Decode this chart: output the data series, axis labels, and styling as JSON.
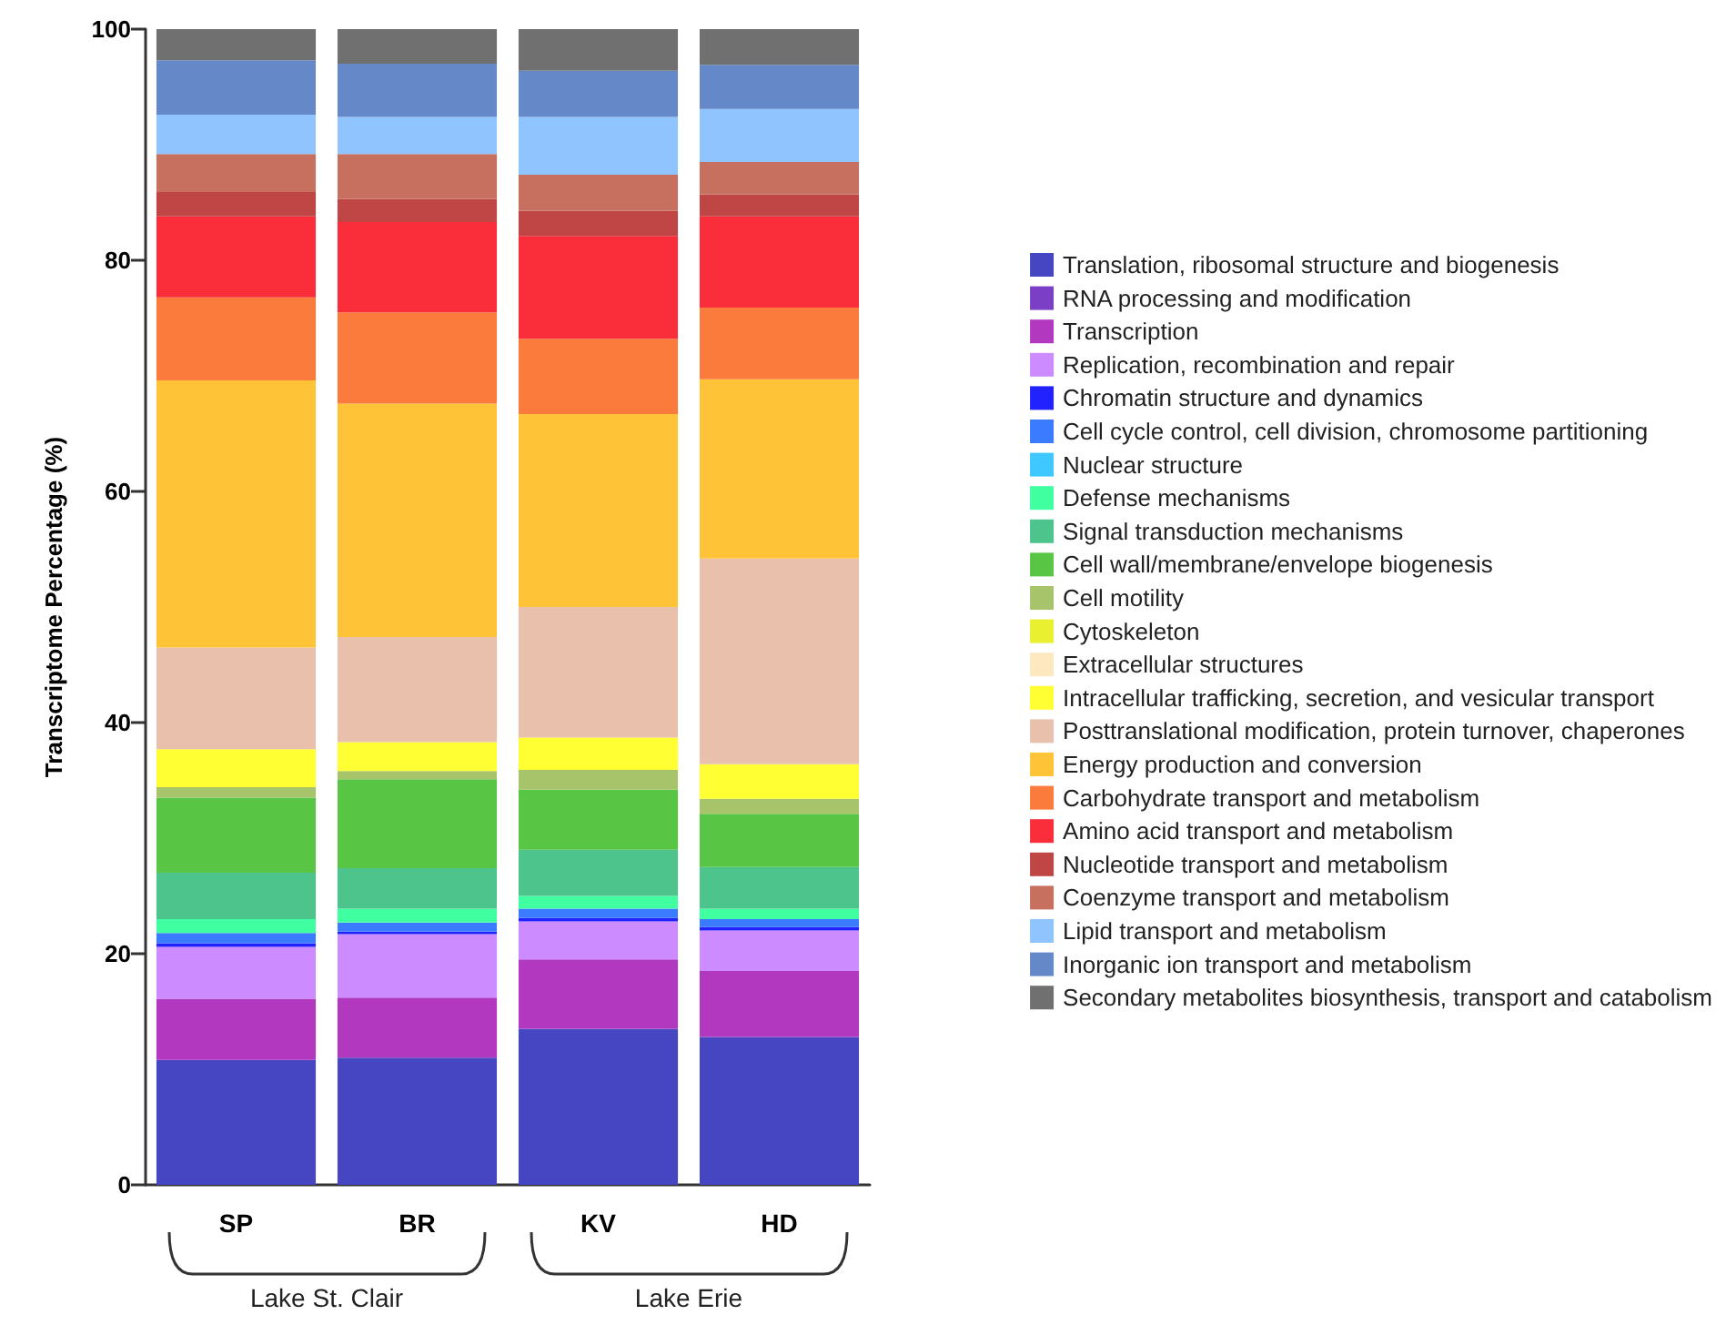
{
  "chart_data": {
    "type": "bar",
    "stacked": true,
    "ylabel": "Transcriptome Percentage (%)",
    "categories": [
      "SP",
      "BR",
      "KV",
      "HD"
    ],
    "ylim": [
      0,
      100
    ],
    "yticks": [
      0,
      20,
      40,
      60,
      80,
      100
    ],
    "grid": false,
    "legend": "right",
    "annotations": [
      "Lake St. Clair",
      "Lake Erie"
    ],
    "series": [
      {
        "name": "Translation, ribosomal structure and biogenesis",
        "color": "#4646c3",
        "values": [
          10.8,
          11.0,
          13.5,
          12.8
        ]
      },
      {
        "name": "RNA processing and modification",
        "color": "#7a3fc4",
        "values": [
          0,
          0,
          0,
          0
        ]
      },
      {
        "name": "Transcription",
        "color": "#b238c0",
        "values": [
          5.3,
          5.2,
          6.0,
          5.7
        ]
      },
      {
        "name": "Replication, recombination and repair",
        "color": "#cc8cff",
        "values": [
          4.5,
          5.5,
          3.3,
          3.5
        ]
      },
      {
        "name": "Chromatin structure and dynamics",
        "color": "#2222ff",
        "values": [
          0.3,
          0.2,
          0.3,
          0.3
        ]
      },
      {
        "name": "Cell cycle control, cell division, chromosome partitioning",
        "color": "#3b7bff",
        "values": [
          0.9,
          0.8,
          0.8,
          0.7
        ]
      },
      {
        "name": "Nuclear structure",
        "color": "#3fc8ff",
        "values": [
          0,
          0,
          0,
          0
        ]
      },
      {
        "name": "Defense mechanisms",
        "color": "#40ffa0",
        "values": [
          1.2,
          1.2,
          1.1,
          0.9
        ]
      },
      {
        "name": "Signal transduction mechanisms",
        "color": "#4cc48c",
        "values": [
          4.0,
          3.5,
          4.0,
          3.6
        ]
      },
      {
        "name": "Cell wall/membrane/envelope biogenesis",
        "color": "#58c544",
        "values": [
          6.5,
          7.7,
          5.2,
          4.6
        ]
      },
      {
        "name": "Cell motility",
        "color": "#a8c46a",
        "values": [
          0.9,
          0.7,
          1.7,
          1.3
        ]
      },
      {
        "name": "Cytoskeleton",
        "color": "#e8f030",
        "values": [
          0,
          0,
          0,
          0
        ]
      },
      {
        "name": "Extracellular structures",
        "color": "#fde8c0",
        "values": [
          0,
          0,
          0,
          0
        ]
      },
      {
        "name": "Intracellular trafficking, secretion, and vesicular transport",
        "color": "#ffff33",
        "values": [
          3.3,
          2.5,
          2.8,
          3.0
        ]
      },
      {
        "name": "Posttranslational modification, protein turnover, chaperones",
        "color": "#e8c0ac",
        "values": [
          8.8,
          9.1,
          11.3,
          17.8
        ]
      },
      {
        "name": "Energy production and conversion",
        "color": "#ffc338",
        "values": [
          23.1,
          20.2,
          16.7,
          15.5
        ]
      },
      {
        "name": "Carbohydrate transport and metabolism",
        "color": "#fa7b3b",
        "values": [
          7.2,
          7.9,
          6.5,
          6.2
        ]
      },
      {
        "name": "Amino acid transport and metabolism",
        "color": "#fa2d3b",
        "values": [
          7.0,
          7.8,
          8.9,
          7.9
        ]
      },
      {
        "name": "Nucleotide transport and metabolism",
        "color": "#c04545",
        "values": [
          2.1,
          2.0,
          2.2,
          1.9
        ]
      },
      {
        "name": "Coenzyme transport and metabolism",
        "color": "#c87060",
        "values": [
          3.3,
          3.9,
          3.1,
          2.8
        ]
      },
      {
        "name": "Lipid transport and metabolism",
        "color": "#90c4ff",
        "values": [
          3.4,
          3.2,
          5.0,
          4.6
        ]
      },
      {
        "name": "Inorganic ion transport and metabolism",
        "color": "#6488c8",
        "values": [
          4.7,
          4.6,
          4.0,
          3.8
        ]
      },
      {
        "name": "Secondary metabolites biosynthesis, transport and catabolism",
        "color": "#707070",
        "values": [
          2.7,
          3.0,
          3.6,
          3.1
        ]
      }
    ]
  }
}
